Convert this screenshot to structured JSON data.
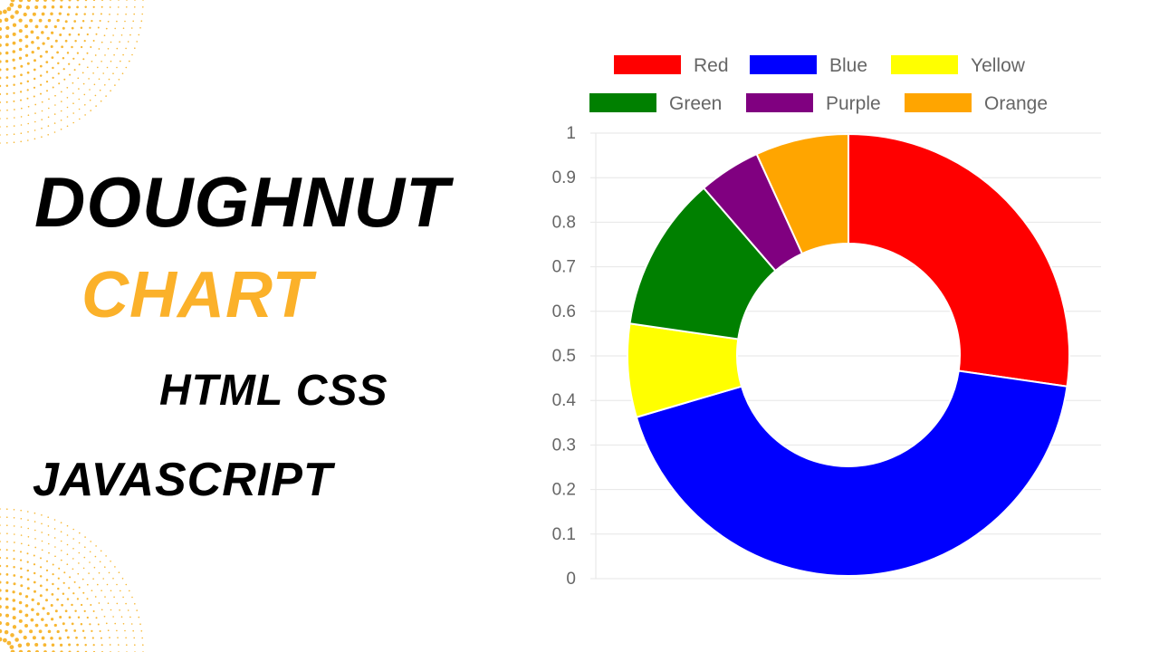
{
  "headline": {
    "line1": "DOUGHNUT",
    "line2": "CHART",
    "line3": "HTML CSS",
    "line4": "JAVASCRIPT"
  },
  "colors": {
    "headline_accent": "#FBB12A",
    "headline_text": "#000000",
    "decoration_dots": "#F7B733"
  },
  "chart_data": {
    "type": "doughnut",
    "title": "",
    "legend_position": "top",
    "series": [
      {
        "name": "Red",
        "value": 12,
        "color": "#FF0000"
      },
      {
        "name": "Blue",
        "value": 19,
        "color": "#0000FF"
      },
      {
        "name": "Yellow",
        "value": 3,
        "color": "#FFFF00"
      },
      {
        "name": "Green",
        "value": 5,
        "color": "#008000"
      },
      {
        "name": "Purple",
        "value": 2,
        "color": "#800080"
      },
      {
        "name": "Orange",
        "value": 3,
        "color": "#FFA500"
      }
    ],
    "yticks": [
      "0",
      "0.1",
      "0.2",
      "0.3",
      "0.4",
      "0.5",
      "0.6",
      "0.7",
      "0.8",
      "0.9",
      "1"
    ],
    "ylim": [
      0,
      1
    ],
    "grid": true
  }
}
